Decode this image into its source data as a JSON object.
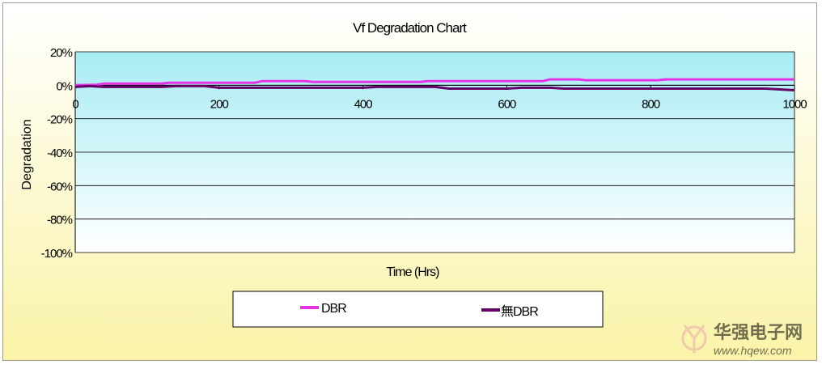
{
  "chart_data": {
    "type": "line",
    "title": "Vf Degradation Chart",
    "xlabel": "Time (Hrs)",
    "ylabel": "Degradation",
    "xlim": [
      0,
      1000
    ],
    "ylim": [
      -100,
      20
    ],
    "x_ticks": [
      0,
      200,
      400,
      600,
      800,
      1000
    ],
    "x_tick_labels": [
      "0",
      "200",
      "400",
      "600",
      "800",
      "1000"
    ],
    "y_ticks": [
      20,
      0,
      -20,
      -40,
      -60,
      -80,
      -100
    ],
    "y_tick_labels": [
      "20%",
      "0%",
      "-20%",
      "-40%",
      "-60%",
      "-80%",
      "-100%"
    ],
    "grid": true,
    "legend_position": "bottom",
    "series": [
      {
        "name": "DBR",
        "color": "#e632e6",
        "x": [
          0,
          30,
          40,
          120,
          130,
          250,
          260,
          320,
          330,
          480,
          490,
          650,
          660,
          700,
          710,
          810,
          820,
          1000
        ],
        "values": [
          0,
          0.3,
          1,
          1,
          1.5,
          1.5,
          2.5,
          2.5,
          2,
          2,
          2.5,
          2.5,
          3.5,
          3.5,
          3,
          3,
          3.5,
          3.5
        ]
      },
      {
        "name": "無DBR",
        "color": "#660066",
        "x": [
          0,
          20,
          40,
          120,
          140,
          180,
          200,
          400,
          420,
          500,
          520,
          600,
          620,
          660,
          680,
          960,
          1000
        ],
        "values": [
          -1,
          -0.5,
          -1,
          -1,
          -0.5,
          -0.5,
          -1.5,
          -1.5,
          -1,
          -1,
          -2,
          -2,
          -1.5,
          -1.5,
          -2,
          -2,
          -3
        ]
      }
    ]
  },
  "watermark": {
    "brand_text": "华强电子网",
    "url_text": "www.hqew.com",
    "color": "#e8a8a8"
  }
}
